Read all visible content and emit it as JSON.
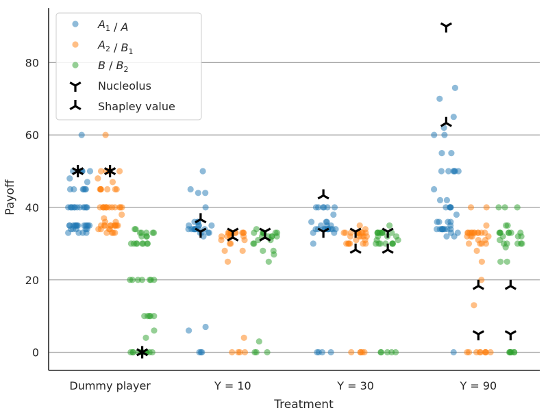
{
  "colors": {
    "a1_a": "#1f77b4",
    "a2_b1": "#ff7f0e",
    "b_b2": "#2ca02c",
    "marker": "#000000",
    "grid": "#a6a6a6",
    "axis": "#262626"
  },
  "chart_data": {
    "type": "scatter",
    "subtype": "strip-plot (jittered categorical scatter)",
    "xlabel": "Treatment",
    "ylabel": "Payoff",
    "categories": [
      "Dummy player",
      "Y = 10",
      "Y = 30",
      "Y = 90"
    ],
    "ylim": [
      -5,
      95
    ],
    "yticks": [
      0,
      20,
      40,
      60,
      80
    ],
    "ytick_labels": [
      "0",
      "20",
      "40",
      "60",
      "80"
    ],
    "grid": "horizontal, y-axis only",
    "legend_position": "top-left",
    "legend": [
      {
        "key": "a1_a",
        "label_main": "A",
        "label_sub": "1",
        "label_sep": " / ",
        "label_main2": "A",
        "label_sub2": "",
        "marker": "dot",
        "color": "#1f77b4"
      },
      {
        "key": "a2_b1",
        "label_main": "A",
        "label_sub": "2",
        "label_sep": " / ",
        "label_main2": "B",
        "label_sub2": "1",
        "marker": "dot",
        "color": "#ff7f0e"
      },
      {
        "key": "b_b2",
        "label_main": "B",
        "label_sub": "",
        "label_sep": " / ",
        "label_main2": "B",
        "label_sub2": "2",
        "marker": "dot",
        "color": "#2ca02c"
      },
      {
        "key": "nucleolus",
        "label": "Nucleolus",
        "marker": "tri_down"
      },
      {
        "key": "shapley",
        "label": "Shapley value",
        "marker": "tri_up"
      }
    ],
    "series": [
      {
        "key": "a1_a",
        "name": "A1 / A",
        "groups": [
          {
            "category": "Dummy player",
            "values": [
              60,
              50,
              50,
              50,
              50,
              50,
              48,
              47,
              45,
              45,
              45,
              45,
              45,
              45,
              40,
              40,
              40,
              40,
              40,
              40,
              40,
              40,
              40,
              40,
              40,
              40,
              35,
              35,
              35,
              35,
              35,
              35,
              35,
              35,
              35,
              35,
              35,
              35,
              35,
              34,
              34,
              34,
              34,
              34,
              33,
              33,
              33,
              33
            ]
          },
          {
            "category": "Y = 10",
            "values": [
              50,
              45,
              44,
              44,
              40,
              36,
              36,
              36,
              35,
              35,
              35,
              35,
              34,
              34,
              34,
              34,
              34,
              34,
              34,
              34,
              33,
              33,
              33,
              33,
              32,
              7,
              6,
              0,
              0,
              0
            ]
          },
          {
            "category": "Y = 30",
            "values": [
              40,
              40,
              40,
              40,
              40,
              40,
              38,
              36,
              36,
              36,
              35,
              35,
              35,
              34,
              34,
              34,
              34,
              34,
              34,
              34,
              34,
              34,
              34,
              34,
              33,
              33,
              30,
              0,
              0,
              0,
              0
            ]
          },
          {
            "category": "Y = 90",
            "values": [
              73,
              70,
              65,
              62,
              60,
              60,
              55,
              55,
              50,
              50,
              50,
              50,
              50,
              50,
              45,
              42,
              42,
              40,
              40,
              40,
              40,
              40,
              38,
              36,
              36,
              36,
              36,
              35,
              34,
              34,
              34,
              34,
              34,
              34,
              34,
              34,
              34,
              33,
              33,
              32,
              32,
              0
            ]
          }
        ]
      },
      {
        "key": "a2_b1",
        "name": "A2 / B1",
        "groups": [
          {
            "category": "Dummy player",
            "values": [
              60,
              50,
              50,
              50,
              50,
              50,
              48,
              47,
              45,
              45,
              45,
              45,
              45,
              45,
              45,
              40,
              40,
              40,
              40,
              40,
              40,
              40,
              40,
              40,
              40,
              40,
              40,
              40,
              38,
              37,
              36,
              36,
              35,
              35,
              35,
              35,
              35,
              35,
              35,
              35,
              35,
              35,
              34,
              34,
              34,
              34,
              33,
              33,
              33,
              33
            ]
          },
          {
            "category": "Y = 10",
            "values": [
              33,
              33,
              33,
              33,
              33,
              33,
              33,
              33,
              33,
              33,
              32,
              32,
              32,
              32,
              32,
              31,
              31,
              30,
              30,
              28,
              28,
              25,
              4,
              0,
              0,
              0,
              0
            ]
          },
          {
            "category": "Y = 30",
            "values": [
              35,
              34,
              33,
              33,
              33,
              33,
              33,
              33,
              33,
              33,
              33,
              32,
              32,
              32,
              32,
              32,
              31,
              31,
              30,
              30,
              30,
              30,
              30,
              30,
              0,
              0,
              0,
              0,
              0
            ]
          },
          {
            "category": "Y = 90",
            "values": [
              40,
              40,
              35,
              33,
              33,
              33,
              33,
              33,
              33,
              33,
              33,
              33,
              33,
              33,
              32,
              32,
              32,
              32,
              31,
              31,
              30,
              30,
              30,
              30,
              28,
              25,
              20,
              13,
              0,
              0,
              0,
              0,
              0,
              0,
              0,
              0,
              0
            ]
          }
        ]
      },
      {
        "key": "b_b2",
        "name": "B / B2",
        "groups": [
          {
            "category": "Dummy player",
            "values": [
              34,
              34,
              33,
              33,
              33,
              33,
              33,
              32,
              32,
              32,
              30,
              30,
              30,
              30,
              30,
              30,
              30,
              30,
              20,
              20,
              20,
              20,
              20,
              20,
              20,
              10,
              10,
              10,
              10,
              10,
              6,
              4,
              0,
              0,
              0,
              0,
              0,
              0,
              0,
              0,
              0,
              0,
              0
            ]
          },
          {
            "category": "Y = 10",
            "values": [
              34,
              33,
              33,
              33,
              33,
              33,
              33,
              32,
              32,
              32,
              32,
              32,
              31,
              31,
              30,
              30,
              28,
              28,
              27,
              25,
              3,
              0,
              0,
              0
            ]
          },
          {
            "category": "Y = 30",
            "values": [
              35,
              33,
              33,
              33,
              33,
              33,
              33,
              33,
              33,
              32,
              32,
              32,
              31,
              31,
              30,
              30,
              30,
              30,
              30,
              30,
              30,
              0,
              0,
              0,
              0,
              0
            ]
          },
          {
            "category": "Y = 90",
            "values": [
              40,
              40,
              40,
              35,
              35,
              33,
              33,
              33,
              33,
              33,
              33,
              33,
              32,
              32,
              32,
              31,
              30,
              30,
              30,
              30,
              30,
              29,
              25,
              25,
              0,
              0,
              0,
              0,
              0,
              0
            ]
          }
        ]
      }
    ],
    "nucleolus": [
      {
        "category": "Dummy player",
        "series": "a1_a",
        "value": 50
      },
      {
        "category": "Dummy player",
        "series": "a2_b1",
        "value": 50
      },
      {
        "category": "Dummy player",
        "series": "b_b2",
        "value": 0
      },
      {
        "category": "Y = 10",
        "series": "a1_a",
        "value": 33.3
      },
      {
        "category": "Y = 10",
        "series": "a2_b1",
        "value": 33.3
      },
      {
        "category": "Y = 10",
        "series": "b_b2",
        "value": 33.3
      },
      {
        "category": "Y = 30",
        "series": "a1_a",
        "value": 33.3
      },
      {
        "category": "Y = 30",
        "series": "a2_b1",
        "value": 33.3
      },
      {
        "category": "Y = 30",
        "series": "b_b2",
        "value": 33.3
      },
      {
        "category": "Y = 90",
        "series": "a1_a",
        "value": 90
      },
      {
        "category": "Y = 90",
        "series": "a2_b1",
        "value": 5
      },
      {
        "category": "Y = 90",
        "series": "b_b2",
        "value": 5
      }
    ],
    "shapley": [
      {
        "category": "Dummy player",
        "series": "a1_a",
        "value": 50
      },
      {
        "category": "Dummy player",
        "series": "a2_b1",
        "value": 50
      },
      {
        "category": "Dummy player",
        "series": "b_b2",
        "value": 0
      },
      {
        "category": "Y = 10",
        "series": "a1_a",
        "value": 36.7
      },
      {
        "category": "Y = 10",
        "series": "a2_b1",
        "value": 31.7
      },
      {
        "category": "Y = 10",
        "series": "b_b2",
        "value": 31.7
      },
      {
        "category": "Y = 30",
        "series": "a1_a",
        "value": 43.3
      },
      {
        "category": "Y = 30",
        "series": "a2_b1",
        "value": 28.3
      },
      {
        "category": "Y = 30",
        "series": "b_b2",
        "value": 28.3
      },
      {
        "category": "Y = 90",
        "series": "a1_a",
        "value": 63.3
      },
      {
        "category": "Y = 90",
        "series": "a2_b1",
        "value": 18.3
      },
      {
        "category": "Y = 90",
        "series": "b_b2",
        "value": 18.3
      }
    ]
  }
}
